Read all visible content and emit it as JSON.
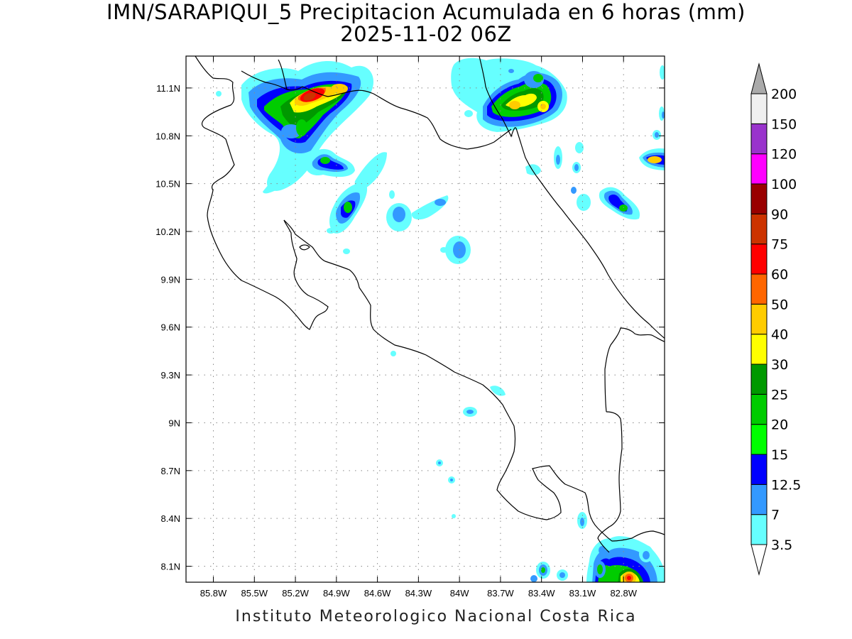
{
  "title": {
    "line1": "IMN/SARAPIQUI_5 Precipitacion Acumulada en 6 horas (mm)",
    "line2": "2025-11-02 06Z"
  },
  "credit": "Instituto Meteorologico Nacional Costa Rica",
  "map": {
    "lon_range": [
      -86.0,
      -82.5
    ],
    "lat_range": [
      8.0,
      11.3
    ],
    "x_ticks": [
      {
        "value": -85.8,
        "label": "85.8W"
      },
      {
        "value": -85.5,
        "label": "85.5W"
      },
      {
        "value": -85.2,
        "label": "85.2W"
      },
      {
        "value": -84.9,
        "label": "84.9W"
      },
      {
        "value": -84.6,
        "label": "84.6W"
      },
      {
        "value": -84.3,
        "label": "84.3W"
      },
      {
        "value": -84.0,
        "label": "84W"
      },
      {
        "value": -83.7,
        "label": "83.7W"
      },
      {
        "value": -83.4,
        "label": "83.4W"
      },
      {
        "value": -83.1,
        "label": "83.1W"
      },
      {
        "value": -82.8,
        "label": "82.8W"
      }
    ],
    "y_ticks": [
      {
        "value": 11.1,
        "label": "11.1N"
      },
      {
        "value": 10.8,
        "label": "10.8N"
      },
      {
        "value": 10.5,
        "label": "10.5N"
      },
      {
        "value": 10.2,
        "label": "10.2N"
      },
      {
        "value": 9.9,
        "label": "9.9N"
      },
      {
        "value": 9.6,
        "label": "9.6N"
      },
      {
        "value": 9.3,
        "label": "9.3N"
      },
      {
        "value": 9.0,
        "label": "9N"
      },
      {
        "value": 8.7,
        "label": "8.7N"
      },
      {
        "value": 8.4,
        "label": "8.4N"
      },
      {
        "value": 8.1,
        "label": "8.1N"
      }
    ],
    "grid": "dotted"
  },
  "colorbar": {
    "levels": [
      {
        "label": "3.5",
        "color": "#66ffff"
      },
      {
        "label": "7",
        "color": "#3399ff"
      },
      {
        "label": "12.5",
        "color": "#0000ff"
      },
      {
        "label": "15",
        "color": "#00ff00"
      },
      {
        "label": "20",
        "color": "#00cc00"
      },
      {
        "label": "25",
        "color": "#009900"
      },
      {
        "label": "30",
        "color": "#ffff00"
      },
      {
        "label": "40",
        "color": "#ffcc00"
      },
      {
        "label": "50",
        "color": "#ff6600"
      },
      {
        "label": "60",
        "color": "#ff0000"
      },
      {
        "label": "75",
        "color": "#cc3300"
      },
      {
        "label": "90",
        "color": "#990000"
      },
      {
        "label": "100",
        "color": "#ff00ff"
      },
      {
        "label": "120",
        "color": "#9933cc"
      },
      {
        "label": "150",
        "color": "#f0f0f0"
      },
      {
        "label": "200",
        "color": "#aaaaaa"
      }
    ]
  },
  "precip_cells": [
    {
      "lon": -85.08,
      "lat": 11.03,
      "mm": 90
    },
    {
      "lon": -84.92,
      "lat": 11.06,
      "mm": 40
    },
    {
      "lon": -85.25,
      "lat": 10.98,
      "mm": 30
    },
    {
      "lon": -85.33,
      "lat": 10.85,
      "mm": 20
    },
    {
      "lon": -85.18,
      "lat": 10.82,
      "mm": 25
    },
    {
      "lon": -84.95,
      "lat": 10.62,
      "mm": 15
    },
    {
      "lon": -84.8,
      "lat": 10.35,
      "mm": 20
    },
    {
      "lon": -84.55,
      "lat": 10.27,
      "mm": 7
    },
    {
      "lon": -83.98,
      "lat": 10.08,
      "mm": 7
    },
    {
      "lon": -83.5,
      "lat": 10.99,
      "mm": 40
    },
    {
      "lon": -83.35,
      "lat": 10.98,
      "mm": 30
    },
    {
      "lon": -83.72,
      "lat": 10.93,
      "mm": 20
    },
    {
      "lon": -82.62,
      "lat": 10.66,
      "mm": 40
    },
    {
      "lon": -82.97,
      "lat": 10.37,
      "mm": 20
    },
    {
      "lon": -82.78,
      "lat": 8.08,
      "mm": 90
    },
    {
      "lon": -82.98,
      "lat": 8.07,
      "mm": 20
    },
    {
      "lon": -83.39,
      "lat": 8.07,
      "mm": 20
    }
  ]
}
